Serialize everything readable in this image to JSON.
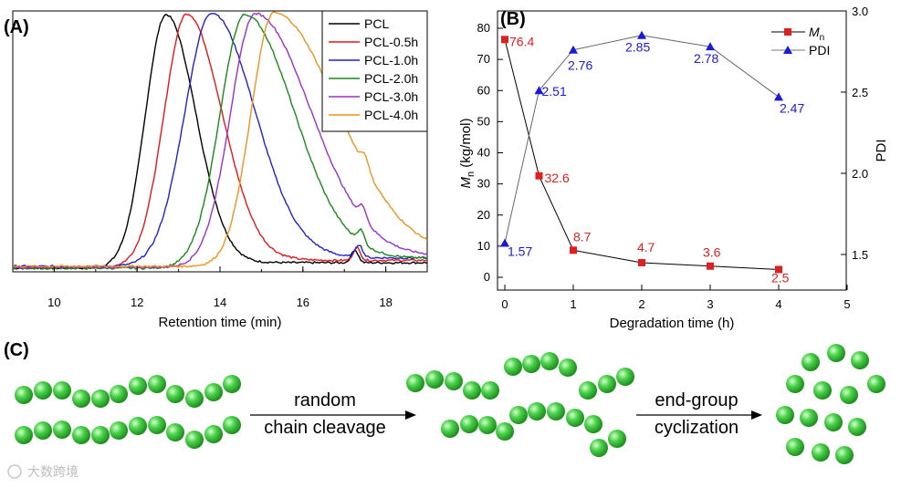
{
  "chart_data": [
    {
      "type": "line",
      "panel_label": "(A)",
      "xlabel": "Retention time (min)",
      "ylabel": "",
      "xlim": [
        9,
        19
      ],
      "xticks": [
        "10",
        "12",
        "14",
        "16",
        "18"
      ],
      "legend_position": "top-right",
      "series": [
        {
          "name": "PCL",
          "color": "#000000",
          "peak_time": 12.7,
          "width_left": 0.5,
          "width_right": 0.72
        },
        {
          "name": "PCL-0.5h",
          "color": "#e8161b",
          "peak_time": 13.2,
          "width_left": 0.55,
          "width_right": 0.85
        },
        {
          "name": "PCL-1.0h",
          "color": "#2222cc",
          "peak_time": 13.8,
          "width_left": 0.65,
          "width_right": 1.05
        },
        {
          "name": "PCL-2.0h",
          "color": "#1a8a1a",
          "peak_time": 14.6,
          "width_left": 0.6,
          "width_right": 1.2
        },
        {
          "name": "PCL-3.0h",
          "color": "#9b2fd6",
          "peak_time": 14.85,
          "width_left": 0.6,
          "width_right": 1.35
        },
        {
          "name": "PCL-4.0h",
          "color": "#f0921e",
          "peak_time": 15.3,
          "width_left": 0.55,
          "width_right": 1.55
        }
      ]
    },
    {
      "type": "line",
      "panel_label": "(B)",
      "title": "",
      "x": [
        0,
        0.5,
        1,
        2,
        3,
        4
      ],
      "xlabel": "Degradation time (h)",
      "xlim": [
        0,
        5
      ],
      "xticks": [
        "0",
        "1",
        "2",
        "3",
        "4",
        "5"
      ],
      "legend_position": "top-right",
      "left_axis": {
        "label_main": "M",
        "label_sub": "n",
        "label_units": " (kg/mol)",
        "ylim": [
          -5,
          85
        ],
        "ticks": [
          "0",
          "10",
          "20",
          "30",
          "40",
          "50",
          "60",
          "70",
          "80"
        ]
      },
      "right_axis": {
        "label": "PDI",
        "ylim": [
          1.35,
          3.0
        ],
        "ticks": [
          "1.5",
          "2.0",
          "2.5",
          "3.0"
        ]
      },
      "series": [
        {
          "name_main": "M",
          "name_sub": "n",
          "axis": "left",
          "color": "#e02020",
          "marker": "square",
          "values": [
            76.4,
            32.6,
            8.7,
            4.7,
            3.6,
            2.5
          ],
          "labels": [
            "76.4",
            "32.6",
            "8.7",
            "4.7",
            "3.6",
            "2.5"
          ]
        },
        {
          "name": "PDI",
          "axis": "right",
          "color": "#1a1adc",
          "marker": "triangle",
          "values": [
            1.57,
            2.51,
            2.76,
            2.85,
            2.78,
            2.47
          ],
          "labels": [
            "1.57",
            "2.51",
            "2.76",
            "2.85",
            "2.78",
            "2.47"
          ]
        }
      ]
    }
  ],
  "scheme": {
    "panel_label": "(C)",
    "step1": {
      "line1": "random",
      "line2": "chain cleavage"
    },
    "step2": {
      "line1": "end-group",
      "line2": "cyclization"
    },
    "bead_color": "#3ec23e"
  },
  "watermark": "大数跨境"
}
